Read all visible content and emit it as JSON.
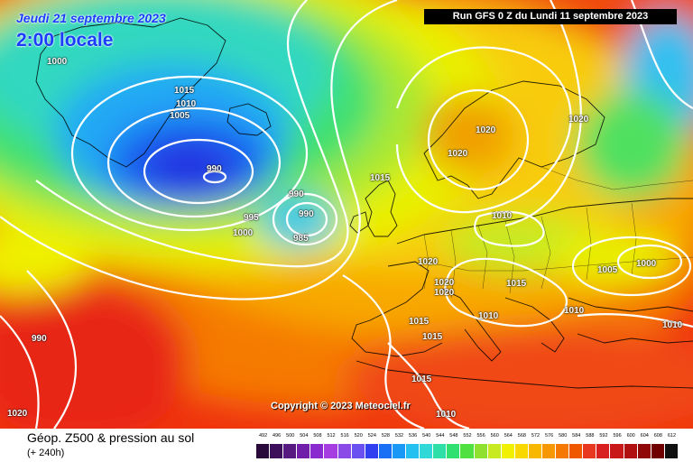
{
  "header": {
    "date_label": "Jeudi 21 septembre 2023",
    "time_label": "2:00 locale",
    "run_label": "Run GFS 0 Z du Lundi 11 septembre 2023"
  },
  "map": {
    "copyright": "Copyright © 2023 Meteociel.fr",
    "isobar_labels": [
      "1000",
      "1015",
      "1010",
      "1005",
      "990",
      "990",
      "995",
      "1000",
      "990",
      "985",
      "1015",
      "1020",
      "1020",
      "1020",
      "1015",
      "1015",
      "1015",
      "1020",
      "1020",
      "1010",
      "1010",
      "1015",
      "1010",
      "1005",
      "1000",
      "1010",
      "1020",
      "1020",
      "1010"
    ],
    "low_center_label": "990"
  },
  "footer": {
    "title": "Géop. Z500 & pression au sol",
    "lead_time": "(+ 240h)"
  },
  "legend": {
    "values": [
      "492",
      "496",
      "500",
      "504",
      "508",
      "512",
      "516",
      "520",
      "524",
      "528",
      "532",
      "536",
      "540",
      "544",
      "548",
      "552",
      "556",
      "560",
      "564",
      "568",
      "572",
      "576",
      "580",
      "584",
      "588",
      "592",
      "596",
      "600",
      "604",
      "608",
      "612"
    ],
    "colors": [
      "#2a0a3a",
      "#3d0f5a",
      "#561a80",
      "#6f1fa8",
      "#8a2bd0",
      "#a53de0",
      "#8a4ae8",
      "#6a50f0",
      "#3040f0",
      "#1a70f5",
      "#1a98f5",
      "#24c0f0",
      "#30d8d8",
      "#2ee0a8",
      "#30e070",
      "#50e040",
      "#90e030",
      "#c8ea20",
      "#f0f000",
      "#f8d800",
      "#f8b800",
      "#f89800",
      "#f57800",
      "#f05800",
      "#e83820",
      "#d82020",
      "#c81818",
      "#b01010",
      "#900808",
      "#700000",
      "#101010"
    ]
  }
}
